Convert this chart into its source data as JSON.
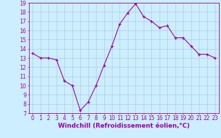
{
  "hours": [
    0,
    1,
    2,
    3,
    4,
    5,
    6,
    7,
    8,
    9,
    10,
    11,
    12,
    13,
    14,
    15,
    16,
    17,
    18,
    19,
    20,
    21,
    22,
    23
  ],
  "values": [
    13.5,
    13.0,
    13.0,
    12.8,
    10.5,
    10.0,
    7.3,
    8.2,
    10.0,
    12.2,
    14.3,
    16.7,
    17.9,
    18.9,
    17.5,
    17.0,
    16.3,
    16.5,
    15.2,
    15.2,
    14.3,
    13.4,
    13.4,
    13.0
  ],
  "line_color": "#990099",
  "marker": "+",
  "marker_size": 3,
  "bg_color": "#cceeff",
  "grid_color": "#aaccdd",
  "xlim": [
    -0.5,
    23.5
  ],
  "ylim": [
    7,
    19
  ],
  "yticks": [
    7,
    8,
    9,
    10,
    11,
    12,
    13,
    14,
    15,
    16,
    17,
    18,
    19
  ],
  "xticks": [
    0,
    1,
    2,
    3,
    4,
    5,
    6,
    7,
    8,
    9,
    10,
    11,
    12,
    13,
    14,
    15,
    16,
    17,
    18,
    19,
    20,
    21,
    22,
    23
  ],
  "tick_fontsize": 5.5,
  "xlabel": "Windchill (Refroidissement éolien,°C)",
  "xlabel_fontsize": 6.5,
  "axis_label_color": "#990099",
  "tick_color": "#990099",
  "spine_color": "#990099"
}
